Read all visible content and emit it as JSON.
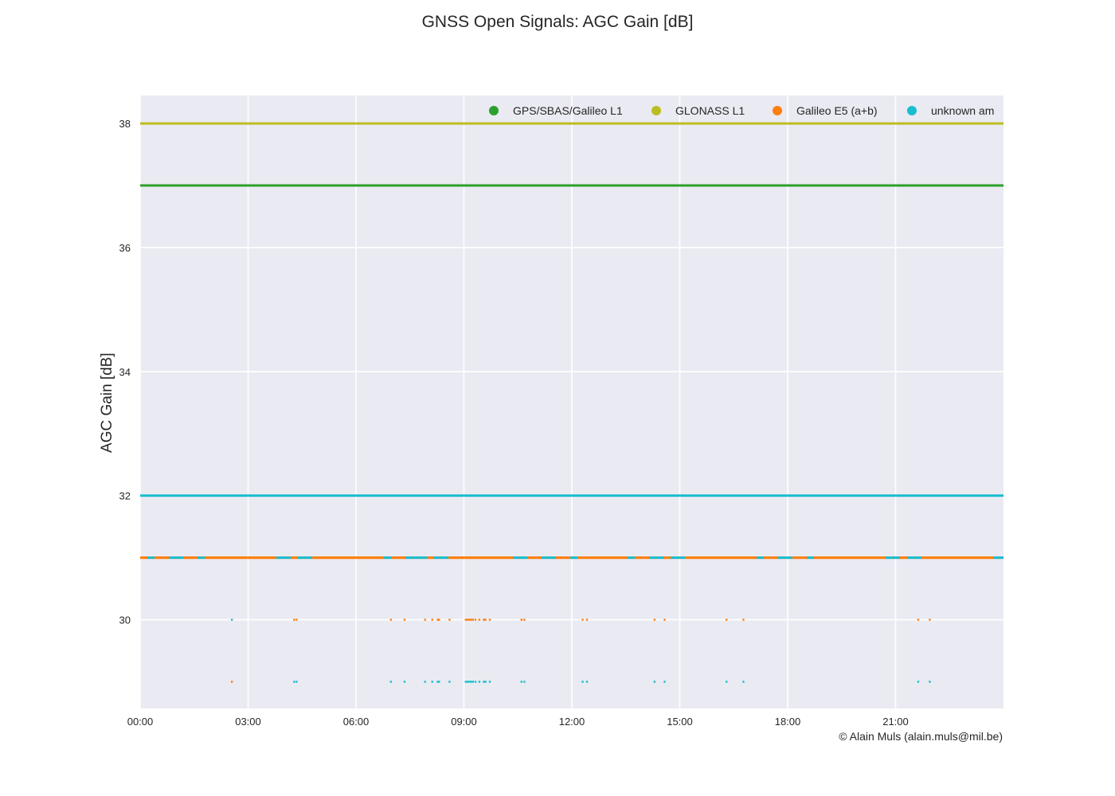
{
  "chart_data": {
    "type": "scatter",
    "title": "GNSS Open Signals: AGC Gain [dB]",
    "xlabel": "",
    "ylabel": "AGC Gain [dB]",
    "x_unit": "time of day (hours)",
    "xlim": [
      0,
      24
    ],
    "ylim": [
      28.57,
      38.45
    ],
    "x_ticks": [
      0,
      3,
      6,
      9,
      12,
      15,
      18,
      21
    ],
    "x_tick_labels": [
      "00:00",
      "03:00",
      "06:00",
      "09:00",
      "12:00",
      "15:00",
      "18:00",
      "21:00"
    ],
    "y_ticks": [
      30,
      32,
      34,
      36,
      38
    ],
    "y_tick_labels": [
      "30",
      "32",
      "34",
      "36",
      "38"
    ],
    "grid": true,
    "legend_position": "top-right",
    "series": [
      {
        "name": "GPS/SBAS/Galileo L1",
        "color": "#2ca02c",
        "constant": 37,
        "x_range": [
          0,
          24
        ],
        "points": []
      },
      {
        "name": "GLONASS L1",
        "color": "#bcbd22",
        "constant": 38,
        "x_range": [
          0,
          24
        ],
        "points": []
      },
      {
        "name": "Galileo E5 (a+b)",
        "color": "#ff7f0e",
        "constant": 31,
        "x_range": [
          0,
          24
        ],
        "points": [
          [
            2.55,
            29
          ],
          [
            4.28,
            30
          ],
          [
            4.35,
            30
          ],
          [
            6.97,
            30
          ],
          [
            7.35,
            30
          ],
          [
            7.92,
            30
          ],
          [
            8.12,
            30
          ],
          [
            8.27,
            30
          ],
          [
            8.31,
            30
          ],
          [
            8.6,
            30
          ],
          [
            9.05,
            30
          ],
          [
            9.1,
            30
          ],
          [
            9.15,
            30
          ],
          [
            9.2,
            30
          ],
          [
            9.25,
            30
          ],
          [
            9.32,
            30
          ],
          [
            9.43,
            30
          ],
          [
            9.55,
            30
          ],
          [
            9.6,
            30
          ],
          [
            9.72,
            30
          ],
          [
            10.6,
            30
          ],
          [
            10.68,
            30
          ],
          [
            12.3,
            30
          ],
          [
            12.42,
            30
          ],
          [
            14.3,
            30
          ],
          [
            14.58,
            30
          ],
          [
            16.3,
            30
          ],
          [
            16.77,
            30
          ],
          [
            21.63,
            30
          ],
          [
            21.95,
            30
          ]
        ]
      },
      {
        "name": "unknown am",
        "color": "#17becf",
        "constant": 32,
        "x_range": [
          0,
          24
        ],
        "points": [
          [
            2.55,
            30
          ],
          [
            4.28,
            29
          ],
          [
            4.35,
            29
          ],
          [
            6.97,
            29
          ],
          [
            7.35,
            29
          ],
          [
            7.92,
            29
          ],
          [
            8.12,
            29
          ],
          [
            8.27,
            29
          ],
          [
            8.31,
            29
          ],
          [
            8.6,
            29
          ],
          [
            9.05,
            29
          ],
          [
            9.1,
            29
          ],
          [
            9.15,
            29
          ],
          [
            9.2,
            29
          ],
          [
            9.25,
            29
          ],
          [
            9.32,
            29
          ],
          [
            9.43,
            29
          ],
          [
            9.55,
            29
          ],
          [
            9.6,
            29
          ],
          [
            9.72,
            29
          ],
          [
            10.6,
            29
          ],
          [
            10.68,
            29
          ],
          [
            12.3,
            29
          ],
          [
            12.42,
            29
          ],
          [
            14.3,
            29
          ],
          [
            14.58,
            29
          ],
          [
            16.3,
            29
          ],
          [
            16.77,
            29
          ],
          [
            21.63,
            29
          ],
          [
            21.95,
            29
          ]
        ]
      }
    ],
    "mixed_band": {
      "value": 31,
      "x_range": [
        0,
        24
      ],
      "colors": [
        "#ff7f0e",
        "#17becf"
      ]
    }
  },
  "credit": "© Alain Muls (alain.muls@mil.be)"
}
